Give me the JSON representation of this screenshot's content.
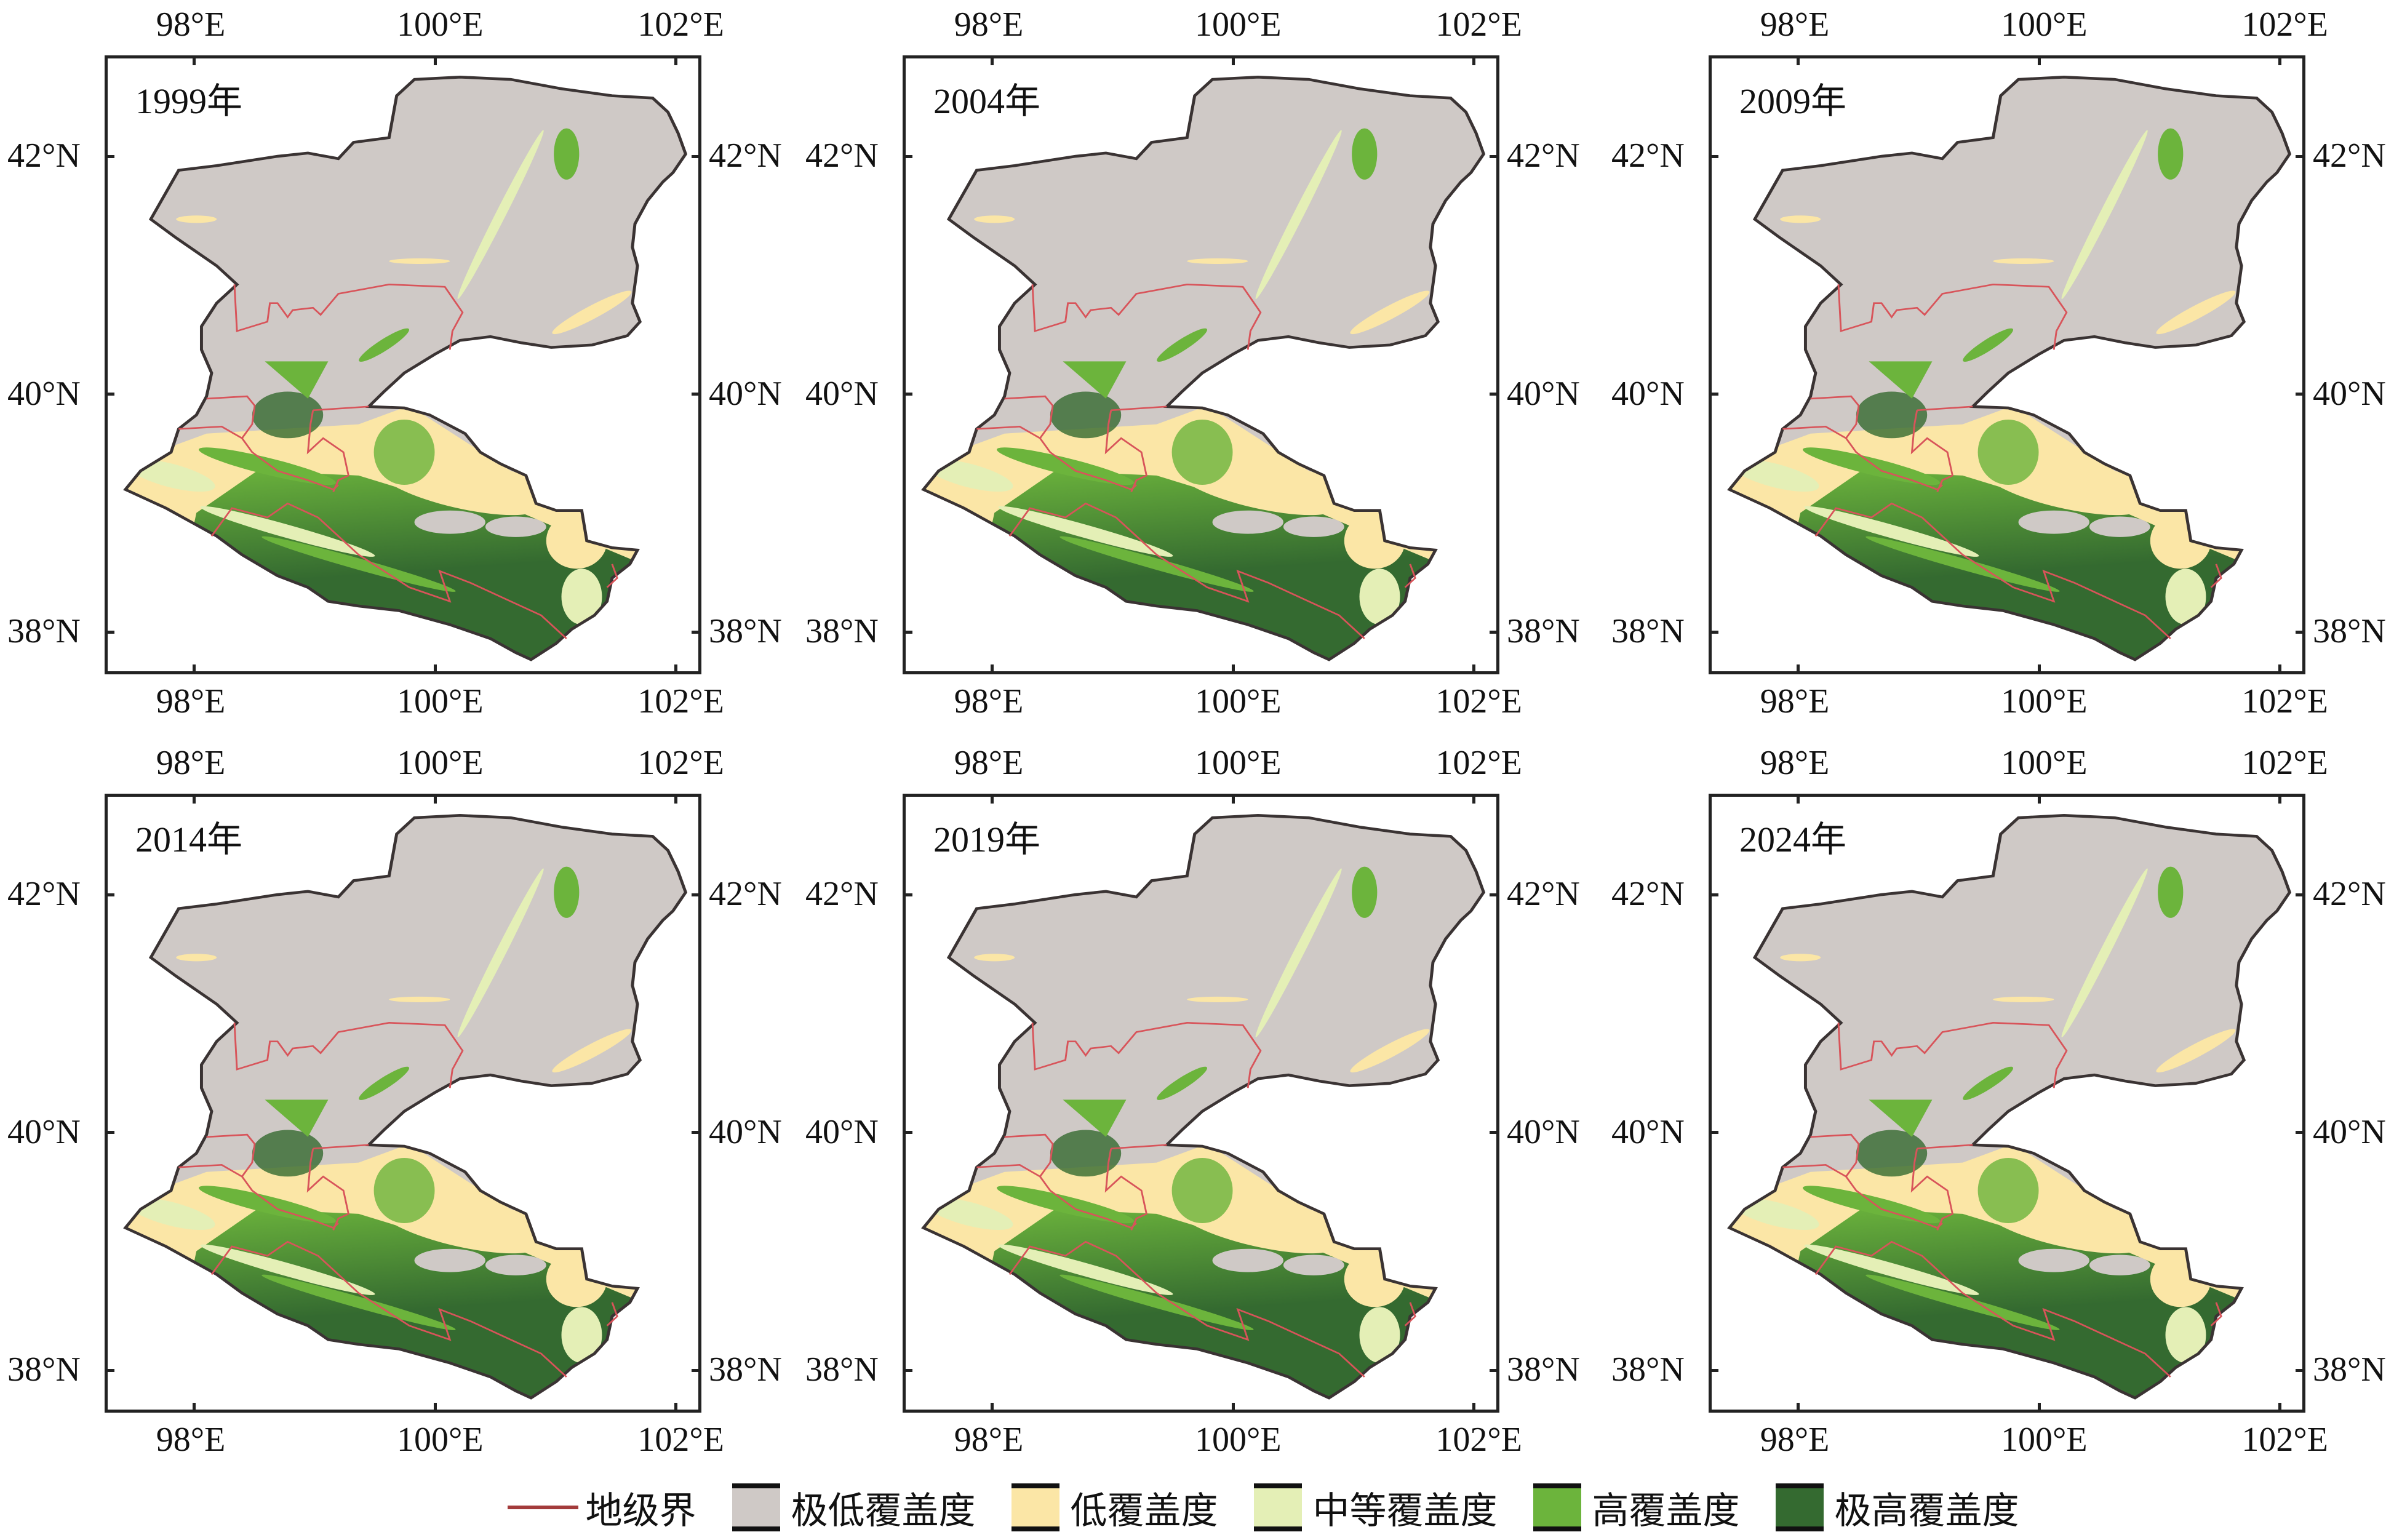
{
  "figure": {
    "panels": [
      {
        "year": "1999年"
      },
      {
        "year": "2004年"
      },
      {
        "year": "2009年"
      },
      {
        "year": "2014年"
      },
      {
        "year": "2019年"
      },
      {
        "year": "2024年"
      }
    ],
    "lon_ticks": [
      "98°E",
      "100°E",
      "102°E"
    ],
    "lat_ticks": [
      "42°N",
      "40°N",
      "38°N"
    ]
  },
  "legend": {
    "items": [
      {
        "label": "地级界",
        "kind": "line",
        "color": "#a33b3b"
      },
      {
        "label": "极低覆盖度",
        "kind": "box",
        "color": "#cfc9c6"
      },
      {
        "label": "低覆盖度",
        "kind": "box",
        "color": "#fbe6a6"
      },
      {
        "label": "中等覆盖度",
        "kind": "box",
        "color": "#e4efb6"
      },
      {
        "label": "高覆盖度",
        "kind": "box",
        "color": "#6cb43c"
      },
      {
        "label": "极高覆盖度",
        "kind": "box",
        "color": "#346a30"
      }
    ]
  },
  "chart_data": {
    "type": "map",
    "title": "",
    "panels": [
      "1999年",
      "2004年",
      "2009年",
      "2014年",
      "2019年",
      "2024年"
    ],
    "lon_range_deg": [
      97.3,
      102.2
    ],
    "lat_range_deg": [
      37.6,
      42.6
    ],
    "lon_ticks": [
      "98°E",
      "100°E",
      "102°E"
    ],
    "lat_ticks": [
      "42°N",
      "40°N",
      "38°N"
    ],
    "classes": [
      "极低覆盖度",
      "低覆盖度",
      "中等覆盖度",
      "高覆盖度",
      "极高覆盖度"
    ],
    "boundary": "地级界",
    "legend_position": "bottom"
  }
}
